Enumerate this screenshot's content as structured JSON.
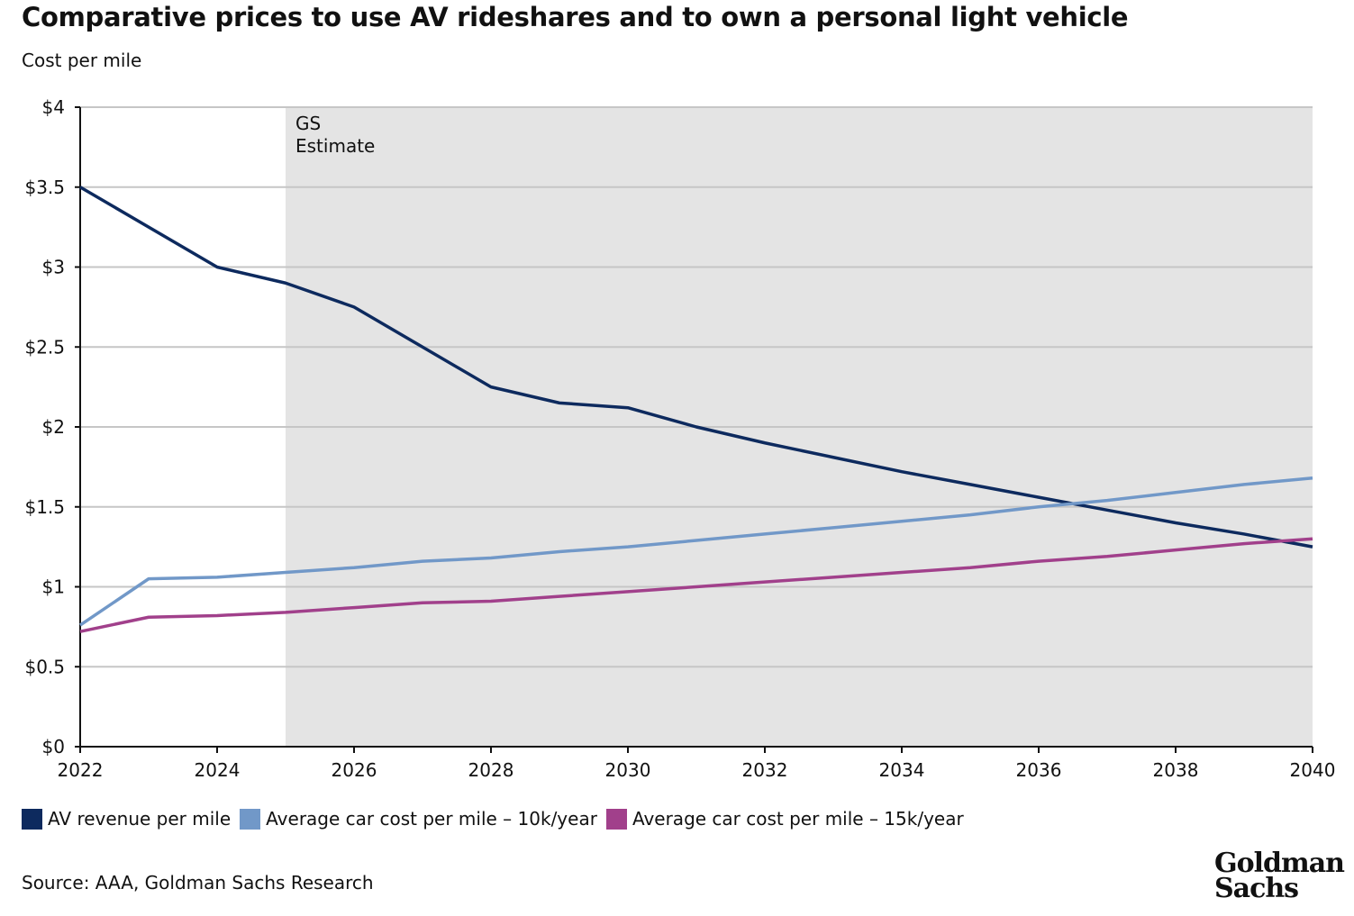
{
  "title": "Comparative prices to use AV rideshares and to own a personal light vehicle",
  "source": "Source: AAA, Goldman Sachs Research",
  "logo": "Goldman Sachs",
  "chart_data": {
    "type": "line",
    "title": "Comparative prices to use AV rideshares and to own a personal light vehicle",
    "ylabel": "Cost per mile",
    "xlabel": "",
    "ylim": [
      0,
      4
    ],
    "xlim": [
      2022,
      2040
    ],
    "yticks": [
      0,
      0.5,
      1,
      1.5,
      2,
      2.5,
      3,
      3.5,
      4
    ],
    "ytick_labels": [
      "$0",
      "$0.5",
      "$1",
      "$1.5",
      "$2",
      "$2.5",
      "$3",
      "$3.5",
      "$4"
    ],
    "xticks": [
      2022,
      2024,
      2026,
      2028,
      2030,
      2032,
      2034,
      2036,
      2038,
      2040
    ],
    "xtick_labels": [
      "2022",
      "2024",
      "2026",
      "2028",
      "2030",
      "2032",
      "2034",
      "2036",
      "2038",
      "2040"
    ],
    "grid": true,
    "legend_position": "bottom-left",
    "shaded_region": {
      "from": 2025,
      "to": 2040,
      "label": "GS Estimate",
      "color": "#e4e4e4"
    },
    "x": [
      2022,
      2023,
      2024,
      2025,
      2026,
      2027,
      2028,
      2029,
      2030,
      2031,
      2032,
      2033,
      2034,
      2035,
      2036,
      2037,
      2038,
      2039,
      2040
    ],
    "series": [
      {
        "name": "AV revenue per mile",
        "color": "#0d2a5e",
        "values": [
          3.5,
          3.25,
          3.0,
          2.9,
          2.75,
          2.5,
          2.25,
          2.15,
          2.12,
          2.0,
          1.9,
          1.81,
          1.72,
          1.64,
          1.56,
          1.48,
          1.4,
          1.33,
          1.25
        ]
      },
      {
        "name": "Average car cost per mile - 10k/year",
        "color": "#7198c8",
        "values": [
          0.76,
          1.05,
          1.06,
          1.09,
          1.12,
          1.16,
          1.18,
          1.22,
          1.25,
          1.29,
          1.33,
          1.37,
          1.41,
          1.45,
          1.5,
          1.54,
          1.59,
          1.64,
          1.68
        ]
      },
      {
        "name": "Average car cost per mile - 15k/year",
        "color": "#a1408b",
        "values": [
          0.72,
          0.81,
          0.82,
          0.84,
          0.87,
          0.9,
          0.91,
          0.94,
          0.97,
          1.0,
          1.03,
          1.06,
          1.09,
          1.12,
          1.16,
          1.19,
          1.23,
          1.27,
          1.3
        ]
      }
    ]
  }
}
